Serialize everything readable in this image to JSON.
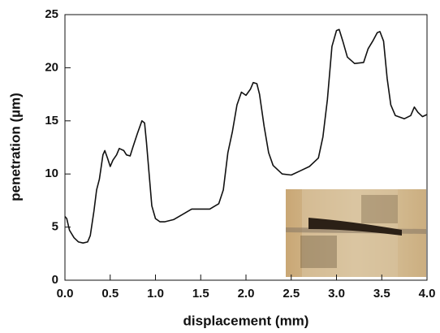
{
  "chart_data": {
    "type": "line",
    "x_label": "displacement (mm)",
    "y_label": "penetration (µm)",
    "x": [
      0.0,
      0.02,
      0.05,
      0.1,
      0.15,
      0.2,
      0.25,
      0.28,
      0.32,
      0.35,
      0.38,
      0.42,
      0.44,
      0.47,
      0.5,
      0.53,
      0.57,
      0.6,
      0.65,
      0.68,
      0.72,
      0.75,
      0.8,
      0.85,
      0.88,
      0.9,
      0.93,
      0.96,
      1.0,
      1.05,
      1.1,
      1.2,
      1.3,
      1.4,
      1.5,
      1.6,
      1.7,
      1.75,
      1.8,
      1.85,
      1.9,
      1.95,
      2.0,
      2.05,
      2.08,
      2.12,
      2.15,
      2.2,
      2.25,
      2.3,
      2.4,
      2.5,
      2.6,
      2.7,
      2.8,
      2.85,
      2.9,
      2.95,
      3.0,
      3.03,
      3.07,
      3.12,
      3.2,
      3.3,
      3.35,
      3.4,
      3.45,
      3.48,
      3.52,
      3.56,
      3.6,
      3.65,
      3.75,
      3.82,
      3.86,
      3.9,
      3.95,
      4.0
    ],
    "values": [
      6.0,
      5.8,
      4.7,
      4.0,
      3.6,
      3.5,
      3.6,
      4.2,
      6.5,
      8.5,
      9.5,
      11.8,
      12.2,
      11.5,
      10.7,
      11.3,
      11.8,
      12.4,
      12.2,
      11.8,
      11.7,
      12.5,
      13.8,
      15.0,
      14.8,
      13.0,
      10.0,
      7.0,
      5.8,
      5.5,
      5.5,
      5.7,
      6.2,
      6.7,
      6.7,
      6.7,
      7.2,
      8.5,
      12.0,
      14.0,
      16.5,
      17.7,
      17.4,
      18.0,
      18.6,
      18.5,
      17.5,
      14.5,
      12.0,
      10.8,
      10.0,
      9.9,
      10.3,
      10.7,
      11.5,
      13.5,
      17.0,
      22.0,
      23.5,
      23.6,
      22.5,
      21.0,
      20.4,
      20.5,
      21.8,
      22.5,
      23.3,
      23.4,
      22.5,
      19.0,
      16.5,
      15.5,
      15.2,
      15.5,
      16.3,
      15.8,
      15.4,
      15.6
    ],
    "color": "#111111",
    "xlim": [
      0,
      4.0
    ],
    "xticks": [
      {
        "value": 0,
        "label": "0.0"
      },
      0.5,
      {
        "value": 1,
        "label": "1.0"
      },
      1.5,
      {
        "value": 2,
        "label": "2.0"
      },
      2.5,
      {
        "value": 3,
        "label": "3.0"
      },
      3.5,
      {
        "value": 4,
        "label": "4.0"
      }
    ],
    "ylim": [
      0,
      25
    ],
    "yticks": [
      0,
      5,
      10,
      15,
      20,
      25
    ]
  }
}
